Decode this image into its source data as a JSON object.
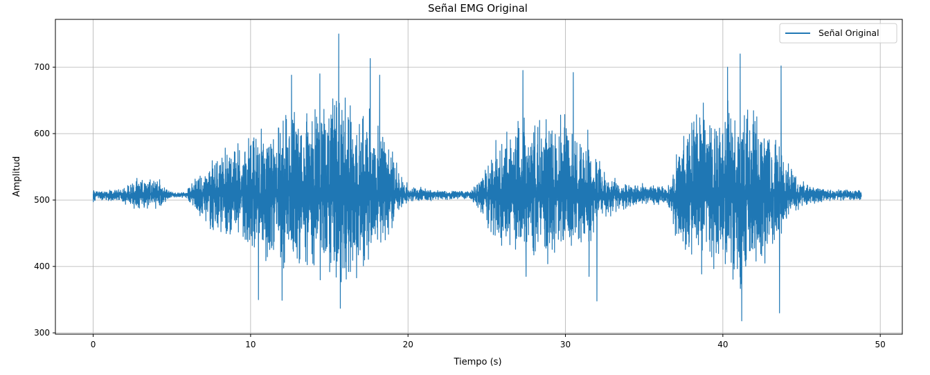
{
  "chart_data": {
    "type": "line",
    "title": "Señal EMG Original",
    "xlabel": "Tiempo (s)",
    "ylabel": "Amplitud",
    "xlim": [
      -2.4,
      51.4
    ],
    "ylim": [
      298,
      772
    ],
    "xticks": [
      0,
      10,
      20,
      30,
      40,
      50
    ],
    "yticks": [
      300,
      400,
      500,
      600,
      700
    ],
    "grid": true,
    "legend_position": "top-right",
    "series": [
      {
        "name": "Señal Original",
        "color": "#1f77b4",
        "baseline": 508,
        "x_range": [
          0,
          48.8
        ],
        "envelope": {
          "times": [
            0.0,
            0.3,
            1.8,
            2.5,
            3.5,
            4.2,
            5.0,
            5.9,
            6.5,
            7.5,
            8.5,
            10.0,
            12.0,
            14.0,
            15.5,
            17.0,
            18.0,
            19.0,
            19.5,
            20.0,
            22.0,
            24.0,
            24.7,
            25.5,
            27.0,
            29.0,
            30.5,
            31.5,
            32.5,
            33.5,
            35.0,
            36.5,
            37.0,
            38.0,
            40.0,
            41.0,
            42.5,
            43.5,
            44.5,
            45.5,
            47.0,
            48.8
          ],
          "upper": [
            518,
            514,
            518,
            532,
            540,
            533,
            512,
            512,
            540,
            565,
            590,
            605,
            640,
            660,
            690,
            670,
            640,
            590,
            540,
            525,
            515,
            515,
            540,
            600,
            625,
            640,
            640,
            610,
            545,
            530,
            525,
            520,
            585,
            640,
            660,
            665,
            640,
            600,
            545,
            525,
            518,
            515
          ],
          "lower": [
            495,
            500,
            495,
            487,
            480,
            485,
            503,
            503,
            475,
            450,
            430,
            420,
            390,
            375,
            360,
            380,
            410,
            445,
            480,
            493,
            500,
            500,
            475,
            420,
            410,
            395,
            400,
            420,
            470,
            480,
            490,
            492,
            440,
            390,
            370,
            360,
            385,
            425,
            475,
            490,
            497,
            500
          ]
        },
        "peaks": [
          {
            "t": 15.6,
            "v": 750
          },
          {
            "t": 17.6,
            "v": 713
          },
          {
            "t": 14.4,
            "v": 690
          },
          {
            "t": 18.2,
            "v": 688
          },
          {
            "t": 12.6,
            "v": 688
          },
          {
            "t": 41.1,
            "v": 720
          },
          {
            "t": 43.7,
            "v": 702
          },
          {
            "t": 40.3,
            "v": 700
          },
          {
            "t": 27.3,
            "v": 695
          },
          {
            "t": 30.5,
            "v": 692
          },
          {
            "t": 15.7,
            "v": 337
          },
          {
            "t": 41.2,
            "v": 318
          },
          {
            "t": 43.6,
            "v": 330
          },
          {
            "t": 12.0,
            "v": 349
          },
          {
            "t": 32.0,
            "v": 348
          },
          {
            "t": 27.5,
            "v": 385
          },
          {
            "t": 31.5,
            "v": 385
          },
          {
            "t": 10.5,
            "v": 350
          }
        ]
      }
    ]
  }
}
